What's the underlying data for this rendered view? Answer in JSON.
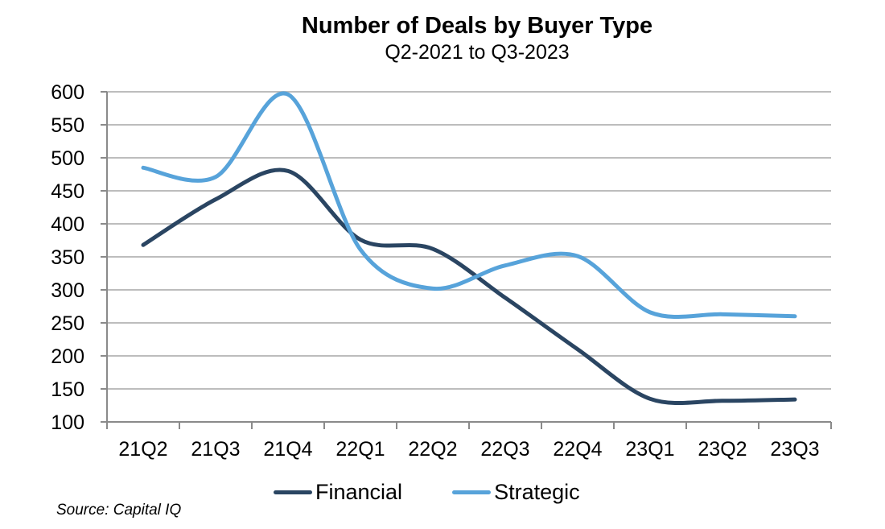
{
  "chart_data": {
    "type": "line",
    "title": "Number of Deals by Buyer Type",
    "subtitle": "Q2-2021 to Q3-2023",
    "xlabel": "",
    "ylabel": "",
    "categories": [
      "21Q2",
      "21Q3",
      "21Q4",
      "22Q1",
      "22Q2",
      "22Q3",
      "22Q4",
      "23Q1",
      "23Q2",
      "23Q3"
    ],
    "ylim": [
      100,
      600
    ],
    "yticks": [
      100,
      150,
      200,
      250,
      300,
      350,
      400,
      450,
      500,
      550,
      600
    ],
    "grid": true,
    "smooth": true,
    "legend_position": "bottom",
    "series": [
      {
        "name": "Financial",
        "color": "#2a4562",
        "values": [
          368,
          437,
          480,
          376,
          362,
          288,
          210,
          135,
          132,
          134
        ]
      },
      {
        "name": "Strategic",
        "color": "#57a3da",
        "values": [
          485,
          471,
          596,
          361,
          302,
          337,
          351,
          266,
          263,
          260
        ]
      }
    ],
    "source": "Source: Capital IQ"
  }
}
